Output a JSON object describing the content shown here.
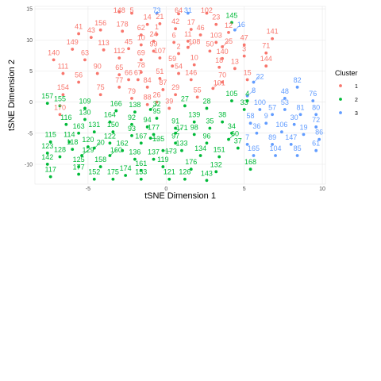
{
  "chart_data": {
    "type": "scatter",
    "title": "",
    "xlabel": "tSNE Dimension 1",
    "ylabel": "tSNE Dimension 2",
    "xlim": [
      -8.4,
      10.2
    ],
    "ylim": [
      -13.2,
      15.4
    ],
    "x_ticks": [
      -5,
      0,
      5,
      10
    ],
    "y_ticks": [
      -10,
      -5,
      0,
      5,
      10,
      15
    ],
    "grid": true,
    "legend": {
      "title": "Cluster",
      "position": "right",
      "entries": [
        {
          "label": "1",
          "color": "#F8766D"
        },
        {
          "label": "2",
          "color": "#00BA38"
        },
        {
          "label": "3",
          "color": "#619CFF"
        }
      ]
    },
    "series": [
      {
        "name": "1",
        "color": "#F8766D",
        "points": [
          {
            "id": "148",
            "x": -3.0,
            "y": 14.5
          },
          {
            "id": "5",
            "x": -2.2,
            "y": 14.3
          },
          {
            "id": "14",
            "x": -1.2,
            "y": 12.5
          },
          {
            "id": "21",
            "x": -0.4,
            "y": 12.6
          },
          {
            "id": "64",
            "x": 0.8,
            "y": 14.2
          },
          {
            "id": "102",
            "x": 2.6,
            "y": 14.3
          },
          {
            "id": "156",
            "x": -4.2,
            "y": 11.6
          },
          {
            "id": "41",
            "x": -5.6,
            "y": 11.0
          },
          {
            "id": "178",
            "x": -2.8,
            "y": 11.4
          },
          {
            "id": "42",
            "x": 0.6,
            "y": 11.8
          },
          {
            "id": "17",
            "x": 1.6,
            "y": 11.7
          },
          {
            "id": "23",
            "x": 3.2,
            "y": 12.5
          },
          {
            "id": "12",
            "x": 4.0,
            "y": 11.2
          },
          {
            "id": "43",
            "x": -4.8,
            "y": 10.4
          },
          {
            "id": "62",
            "x": -1.6,
            "y": 10.8
          },
          {
            "id": "1",
            "x": -0.6,
            "y": 10.9
          },
          {
            "id": "46",
            "x": 2.2,
            "y": 10.8
          },
          {
            "id": "141",
            "x": 6.8,
            "y": 10.2
          },
          {
            "id": "24",
            "x": -0.8,
            "y": 9.8
          },
          {
            "id": "10",
            "x": -1.6,
            "y": 9.2
          },
          {
            "id": "6",
            "x": 0.5,
            "y": 9.6
          },
          {
            "id": "11",
            "x": 1.4,
            "y": 9.8
          },
          {
            "id": "103",
            "x": 3.2,
            "y": 9.6
          },
          {
            "id": "47",
            "x": 5.0,
            "y": 9.2
          },
          {
            "id": "149",
            "x": -6.0,
            "y": 8.5
          },
          {
            "id": "113",
            "x": -4.0,
            "y": 8.4
          },
          {
            "id": "45",
            "x": -2.4,
            "y": 8.6
          },
          {
            "id": "99",
            "x": -0.8,
            "y": 8.2
          },
          {
            "id": "108",
            "x": 1.4,
            "y": 8.8
          },
          {
            "id": "50",
            "x": 2.8,
            "y": 8.2
          },
          {
            "id": "25",
            "x": 3.6,
            "y": 8.9
          },
          {
            "id": "71",
            "x": 6.4,
            "y": 7.9
          },
          {
            "id": "140",
            "x": -7.2,
            "y": 6.8
          },
          {
            "id": "63",
            "x": -5.2,
            "y": 6.8
          },
          {
            "id": "112",
            "x": -3.0,
            "y": 7.1
          },
          {
            "id": "69",
            "x": -1.6,
            "y": 6.8
          },
          {
            "id": "107",
            "x": -0.4,
            "y": 7.1
          },
          {
            "id": "2",
            "x": 0.8,
            "y": 7.8
          },
          {
            "id": "140b",
            "x": 3.6,
            "y": 7.0
          },
          {
            "id": "3",
            "x": 5.0,
            "y": 7.4
          },
          {
            "id": "59",
            "x": 0.4,
            "y": 5.8
          },
          {
            "id": "10b",
            "x": 1.8,
            "y": 6.0
          },
          {
            "id": "18",
            "x": 3.4,
            "y": 5.6
          },
          {
            "id": "144",
            "x": 6.4,
            "y": 5.8
          },
          {
            "id": "111",
            "x": -6.6,
            "y": 4.6
          },
          {
            "id": "90",
            "x": -4.4,
            "y": 4.6
          },
          {
            "id": "65",
            "x": -3.0,
            "y": 4.4
          },
          {
            "id": "78",
            "x": -1.6,
            "y": 4.8
          },
          {
            "id": "54",
            "x": 0.8,
            "y": 4.6
          },
          {
            "id": "13",
            "x": 4.4,
            "y": 5.4
          },
          {
            "id": "56",
            "x": -5.6,
            "y": 3.2
          },
          {
            "id": "66",
            "x": -2.4,
            "y": 3.6
          },
          {
            "id": "67",
            "x": -1.8,
            "y": 3.6
          },
          {
            "id": "51",
            "x": -0.4,
            "y": 3.8
          },
          {
            "id": "146",
            "x": 1.6,
            "y": 3.6
          },
          {
            "id": "70",
            "x": 3.6,
            "y": 3.2
          },
          {
            "id": "15",
            "x": 5.2,
            "y": 3.6
          },
          {
            "id": "77",
            "x": -3.0,
            "y": 2.4
          },
          {
            "id": "84",
            "x": -1.2,
            "y": 2.4
          },
          {
            "id": "87",
            "x": -0.2,
            "y": 2.0
          },
          {
            "id": "101",
            "x": 3.0,
            "y": 2.2
          },
          {
            "id": "154",
            "x": -6.6,
            "y": 1.2
          },
          {
            "id": "75",
            "x": -4.2,
            "y": 1.2
          },
          {
            "id": "79",
            "x": -2.2,
            "y": 0.6
          },
          {
            "id": "29",
            "x": 0.6,
            "y": 1.2
          },
          {
            "id": "55",
            "x": 2.0,
            "y": 0.8
          },
          {
            "id": "26",
            "x": -0.6,
            "y": 0.0
          },
          {
            "id": "88",
            "x": -1.2,
            "y": -0.4
          },
          {
            "id": "39",
            "x": 0.2,
            "y": -1.0
          },
          {
            "id": "170",
            "x": -6.8,
            "y": -2.0
          }
        ]
      },
      {
        "name": "2",
        "color": "#00BA38",
        "points": [
          {
            "id": "145",
            "x": 4.2,
            "y": 12.8
          },
          {
            "id": "157",
            "x": -7.6,
            "y": -0.2
          },
          {
            "id": "105",
            "x": 4.2,
            "y": 0.2
          },
          {
            "id": "4",
            "x": 5.2,
            "y": 0.2
          },
          {
            "id": "109",
            "x": -5.2,
            "y": -1.0
          },
          {
            "id": "155",
            "x": -6.8,
            "y": -0.6
          },
          {
            "id": "166",
            "x": -3.2,
            "y": -1.4
          },
          {
            "id": "138",
            "x": -2.0,
            "y": -1.6
          },
          {
            "id": "32",
            "x": -1.0,
            "y": -1.2
          },
          {
            "id": "27",
            "x": 1.2,
            "y": -0.6
          },
          {
            "id": "28",
            "x": 2.6,
            "y": -1.0
          },
          {
            "id": "33",
            "x": 5.0,
            "y": -1.2
          },
          {
            "id": "130",
            "x": -5.2,
            "y": -2.8
          },
          {
            "id": "164",
            "x": -3.6,
            "y": -3.2
          },
          {
            "id": "92",
            "x": -2.2,
            "y": -3.6
          },
          {
            "id": "95",
            "x": -0.6,
            "y": -2.6
          },
          {
            "id": "139",
            "x": 1.8,
            "y": -3.2
          },
          {
            "id": "38",
            "x": 3.6,
            "y": -3.2
          },
          {
            "id": "116",
            "x": -6.4,
            "y": -3.6
          },
          {
            "id": "94",
            "x": -1.2,
            "y": -4.0
          },
          {
            "id": "91",
            "x": 0.6,
            "y": -4.2
          },
          {
            "id": "35",
            "x": 2.8,
            "y": -4.2
          },
          {
            "id": "163",
            "x": -5.6,
            "y": -5.0
          },
          {
            "id": "131",
            "x": -4.6,
            "y": -4.8
          },
          {
            "id": "150",
            "x": -3.4,
            "y": -4.8
          },
          {
            "id": "93",
            "x": -2.2,
            "y": -5.4
          },
          {
            "id": "177",
            "x": -0.8,
            "y": -5.2
          },
          {
            "id": "171",
            "x": 0.6,
            "y": -5.0
          },
          {
            "id": "98",
            "x": 1.8,
            "y": -5.2
          },
          {
            "id": "34",
            "x": 4.2,
            "y": -5.0
          },
          {
            "id": "115",
            "x": -7.4,
            "y": -6.4
          },
          {
            "id": "114",
            "x": -6.2,
            "y": -6.4
          },
          {
            "id": "122",
            "x": -3.6,
            "y": -6.6
          },
          {
            "id": "167",
            "x": -1.6,
            "y": -6.6
          },
          {
            "id": "135",
            "x": -1.0,
            "y": -5.8
          },
          {
            "id": "97",
            "x": 0.6,
            "y": -6.6
          },
          {
            "id": "96",
            "x": 2.6,
            "y": -6.6
          },
          {
            "id": "60",
            "x": 4.0,
            "y": -6.0
          },
          {
            "id": "118",
            "x": -6.0,
            "y": -7.6
          },
          {
            "id": "120",
            "x": -5.0,
            "y": -7.2
          },
          {
            "id": "20",
            "x": -4.6,
            "y": -7.4
          },
          {
            "id": "162",
            "x": -2.8,
            "y": -7.8
          },
          {
            "id": "173",
            "x": -0.2,
            "y": -7.8
          },
          {
            "id": "133",
            "x": 1.0,
            "y": -7.8
          },
          {
            "id": "134",
            "x": 2.2,
            "y": -8.6
          },
          {
            "id": "151",
            "x": 3.4,
            "y": -8.8
          },
          {
            "id": "37",
            "x": 4.6,
            "y": -7.4
          },
          {
            "id": "123",
            "x": -7.6,
            "y": -8.2
          },
          {
            "id": "128",
            "x": -6.8,
            "y": -8.8
          },
          {
            "id": "129",
            "x": -5.4,
            "y": -8.6
          },
          {
            "id": "160",
            "x": -3.6,
            "y": -8.6
          },
          {
            "id": "136",
            "x": -2.0,
            "y": -9.2
          },
          {
            "id": "137",
            "x": -0.8,
            "y": -9.2
          },
          {
            "id": "142",
            "x": -7.6,
            "y": -10.0
          },
          {
            "id": "125",
            "x": -5.6,
            "y": -10.4
          },
          {
            "id": "158",
            "x": -4.2,
            "y": -10.4
          },
          {
            "id": "161",
            "x": -1.6,
            "y": -11.0
          },
          {
            "id": "119",
            "x": -0.2,
            "y": -10.4
          },
          {
            "id": "176",
            "x": 1.6,
            "y": -10.8
          },
          {
            "id": "132",
            "x": 3.2,
            "y": -11.2
          },
          {
            "id": "168",
            "x": 5.4,
            "y": -10.8
          },
          {
            "id": "117",
            "x": -7.4,
            "y": -12.0
          },
          {
            "id": "177b",
            "x": -5.6,
            "y": -11.6
          },
          {
            "id": "152",
            "x": -4.6,
            "y": -12.4
          },
          {
            "id": "175",
            "x": -3.4,
            "y": -12.4
          },
          {
            "id": "174",
            "x": -2.6,
            "y": -11.8
          },
          {
            "id": "153",
            "x": -1.6,
            "y": -12.4
          },
          {
            "id": "121",
            "x": 0.2,
            "y": -12.4
          },
          {
            "id": "126",
            "x": 1.2,
            "y": -12.4
          },
          {
            "id": "143",
            "x": 2.6,
            "y": -12.6
          }
        ]
      },
      {
        "name": "3",
        "color": "#619CFF",
        "points": [
          {
            "id": "73",
            "x": -0.6,
            "y": 14.3
          },
          {
            "id": "31",
            "x": 1.4,
            "y": 14.3
          },
          {
            "id": "16",
            "x": 4.4,
            "y": 11.6
          },
          {
            "id": "22",
            "x": 5.6,
            "y": 3.2
          },
          {
            "id": "8",
            "x": 5.2,
            "y": 1.0
          },
          {
            "id": "82",
            "x": 8.4,
            "y": 2.4
          },
          {
            "id": "48",
            "x": 7.6,
            "y": 0.6
          },
          {
            "id": "76",
            "x": 9.4,
            "y": 0.2
          },
          {
            "id": "100",
            "x": 6.0,
            "y": -1.2
          },
          {
            "id": "53",
            "x": 7.6,
            "y": -1.2
          },
          {
            "id": "57",
            "x": 6.8,
            "y": -2.0
          },
          {
            "id": "81",
            "x": 8.6,
            "y": -2.0
          },
          {
            "id": "80",
            "x": 9.6,
            "y": -2.0
          },
          {
            "id": "58",
            "x": 5.4,
            "y": -3.4
          },
          {
            "id": "9",
            "x": 6.4,
            "y": -3.4
          },
          {
            "id": "30",
            "x": 8.2,
            "y": -3.6
          },
          {
            "id": "72",
            "x": 9.6,
            "y": -4.0
          },
          {
            "id": "36",
            "x": 5.8,
            "y": -5.0
          },
          {
            "id": "106",
            "x": 7.4,
            "y": -4.8
          },
          {
            "id": "19",
            "x": 8.8,
            "y": -5.2
          },
          {
            "id": "86",
            "x": 9.8,
            "y": -6.0
          },
          {
            "id": "7",
            "x": 5.2,
            "y": -6.8
          },
          {
            "id": "89",
            "x": 6.8,
            "y": -6.8
          },
          {
            "id": "147",
            "x": 8.0,
            "y": -6.8
          },
          {
            "id": "61",
            "x": 9.6,
            "y": -7.8
          },
          {
            "id": "165",
            "x": 5.6,
            "y": -8.6
          },
          {
            "id": "104",
            "x": 7.0,
            "y": -8.6
          },
          {
            "id": "85",
            "x": 8.4,
            "y": -8.6
          }
        ]
      }
    ]
  }
}
